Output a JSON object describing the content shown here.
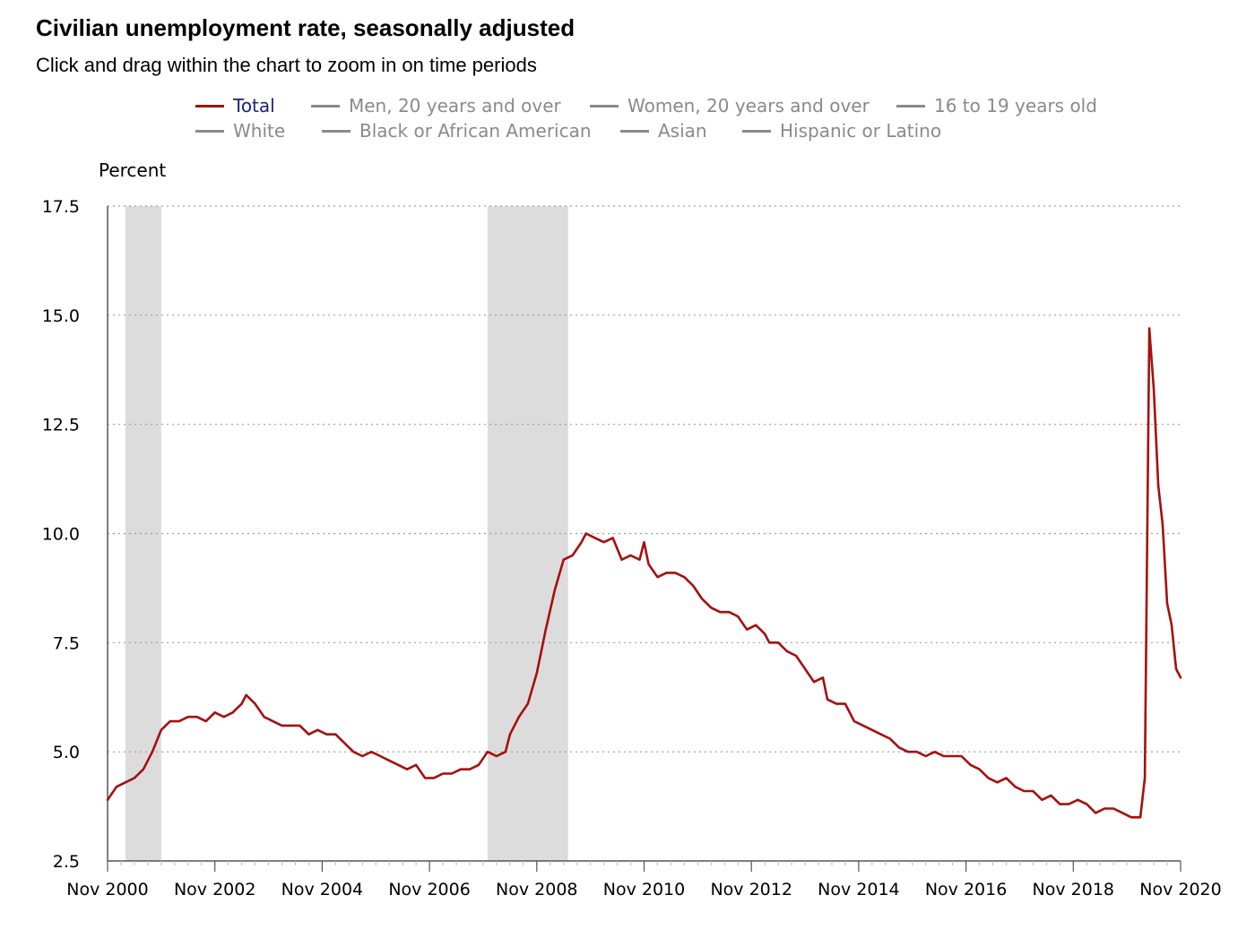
{
  "header": {
    "title": "Civilian unemployment rate, seasonally adjusted",
    "subtitle": "Click and drag within the chart to zoom in on time periods"
  },
  "legend": [
    {
      "label": "Total",
      "active": true
    },
    {
      "label": "Men, 20 years and over",
      "active": false
    },
    {
      "label": "Women, 20 years and over",
      "active": false
    },
    {
      "label": "16 to 19 years old",
      "active": false
    },
    {
      "label": "White",
      "active": false
    },
    {
      "label": "Black or African American",
      "active": false
    },
    {
      "label": "Asian",
      "active": false
    },
    {
      "label": "Hispanic or Latino",
      "active": false
    }
  ],
  "colors": {
    "series": "#a50f0f",
    "recession": "#dcdcdc",
    "grid": "#9e9e9e",
    "legend_inactive": "#8a8a8a",
    "legend_active_text": "#1a237e"
  },
  "chart_data": {
    "type": "line",
    "ylabel": "Percent",
    "xlabel": "",
    "ylim": [
      2.5,
      17.5
    ],
    "yticks": [
      "2.5",
      "5.0",
      "7.5",
      "10.0",
      "12.5",
      "15.0",
      "17.5"
    ],
    "xlim": [
      "Nov 2000",
      "Nov 2020"
    ],
    "xticks": [
      "Nov 2000",
      "Nov 2002",
      "Nov 2004",
      "Nov 2006",
      "Nov 2008",
      "Nov 2010",
      "Nov 2012",
      "Nov 2014",
      "Nov 2016",
      "Nov 2018",
      "Nov 2020"
    ],
    "grid": "horizontal dotted",
    "recessions": [
      {
        "start": "Mar 2001",
        "end": "Nov 2001"
      },
      {
        "start": "Dec 2007",
        "end": "Jun 2009"
      }
    ],
    "series": [
      {
        "name": "Total",
        "points": [
          [
            "Nov 2000",
            3.9
          ],
          [
            "Jan 2001",
            4.2
          ],
          [
            "Mar 2001",
            4.3
          ],
          [
            "May 2001",
            4.4
          ],
          [
            "Jul 2001",
            4.6
          ],
          [
            "Sep 2001",
            5.0
          ],
          [
            "Nov 2001",
            5.5
          ],
          [
            "Jan 2002",
            5.7
          ],
          [
            "Mar 2002",
            5.7
          ],
          [
            "May 2002",
            5.8
          ],
          [
            "Jul 2002",
            5.8
          ],
          [
            "Sep 2002",
            5.7
          ],
          [
            "Nov 2002",
            5.9
          ],
          [
            "Jan 2003",
            5.8
          ],
          [
            "Mar 2003",
            5.9
          ],
          [
            "May 2003",
            6.1
          ],
          [
            "Jun 2003",
            6.3
          ],
          [
            "Aug 2003",
            6.1
          ],
          [
            "Oct 2003",
            5.8
          ],
          [
            "Dec 2003",
            5.7
          ],
          [
            "Feb 2004",
            5.6
          ],
          [
            "Apr 2004",
            5.6
          ],
          [
            "Jun 2004",
            5.6
          ],
          [
            "Aug 2004",
            5.4
          ],
          [
            "Oct 2004",
            5.5
          ],
          [
            "Dec 2004",
            5.4
          ],
          [
            "Feb 2005",
            5.4
          ],
          [
            "Apr 2005",
            5.2
          ],
          [
            "Jun 2005",
            5.0
          ],
          [
            "Aug 2005",
            4.9
          ],
          [
            "Oct 2005",
            5.0
          ],
          [
            "Dec 2005",
            4.9
          ],
          [
            "Feb 2006",
            4.8
          ],
          [
            "Apr 2006",
            4.7
          ],
          [
            "Jun 2006",
            4.6
          ],
          [
            "Aug 2006",
            4.7
          ],
          [
            "Oct 2006",
            4.4
          ],
          [
            "Dec 2006",
            4.4
          ],
          [
            "Feb 2007",
            4.5
          ],
          [
            "Apr 2007",
            4.5
          ],
          [
            "Jun 2007",
            4.6
          ],
          [
            "Aug 2007",
            4.6
          ],
          [
            "Oct 2007",
            4.7
          ],
          [
            "Dec 2007",
            5.0
          ],
          [
            "Feb 2008",
            4.9
          ],
          [
            "Apr 2008",
            5.0
          ],
          [
            "May 2008",
            5.4
          ],
          [
            "Jul 2008",
            5.8
          ],
          [
            "Sep 2008",
            6.1
          ],
          [
            "Nov 2008",
            6.8
          ],
          [
            "Jan 2009",
            7.8
          ],
          [
            "Mar 2009",
            8.7
          ],
          [
            "May 2009",
            9.4
          ],
          [
            "Jul 2009",
            9.5
          ],
          [
            "Sep 2009",
            9.8
          ],
          [
            "Oct 2009",
            10.0
          ],
          [
            "Dec 2009",
            9.9
          ],
          [
            "Feb 2010",
            9.8
          ],
          [
            "Apr 2010",
            9.9
          ],
          [
            "Jun 2010",
            9.4
          ],
          [
            "Aug 2010",
            9.5
          ],
          [
            "Oct 2010",
            9.4
          ],
          [
            "Nov 2010",
            9.8
          ],
          [
            "Dec 2010",
            9.3
          ],
          [
            "Feb 2011",
            9.0
          ],
          [
            "Apr 2011",
            9.1
          ],
          [
            "Jun 2011",
            9.1
          ],
          [
            "Aug 2011",
            9.0
          ],
          [
            "Oct 2011",
            8.8
          ],
          [
            "Dec 2011",
            8.5
          ],
          [
            "Feb 2012",
            8.3
          ],
          [
            "Apr 2012",
            8.2
          ],
          [
            "Jun 2012",
            8.2
          ],
          [
            "Aug 2012",
            8.1
          ],
          [
            "Oct 2012",
            7.8
          ],
          [
            "Dec 2012",
            7.9
          ],
          [
            "Feb 2013",
            7.7
          ],
          [
            "Mar 2013",
            7.5
          ],
          [
            "May 2013",
            7.5
          ],
          [
            "Jul 2013",
            7.3
          ],
          [
            "Sep 2013",
            7.2
          ],
          [
            "Nov 2013",
            6.9
          ],
          [
            "Jan 2014",
            6.6
          ],
          [
            "Mar 2014",
            6.7
          ],
          [
            "Apr 2014",
            6.2
          ],
          [
            "Jun 2014",
            6.1
          ],
          [
            "Aug 2014",
            6.1
          ],
          [
            "Oct 2014",
            5.7
          ],
          [
            "Dec 2014",
            5.6
          ],
          [
            "Feb 2015",
            5.5
          ],
          [
            "Apr 2015",
            5.4
          ],
          [
            "Jun 2015",
            5.3
          ],
          [
            "Aug 2015",
            5.1
          ],
          [
            "Oct 2015",
            5.0
          ],
          [
            "Dec 2015",
            5.0
          ],
          [
            "Feb 2016",
            4.9
          ],
          [
            "Apr 2016",
            5.0
          ],
          [
            "Jun 2016",
            4.9
          ],
          [
            "Aug 2016",
            4.9
          ],
          [
            "Oct 2016",
            4.9
          ],
          [
            "Dec 2016",
            4.7
          ],
          [
            "Feb 2017",
            4.6
          ],
          [
            "Apr 2017",
            4.4
          ],
          [
            "Jun 2017",
            4.3
          ],
          [
            "Aug 2017",
            4.4
          ],
          [
            "Oct 2017",
            4.2
          ],
          [
            "Dec 2017",
            4.1
          ],
          [
            "Feb 2018",
            4.1
          ],
          [
            "Apr 2018",
            3.9
          ],
          [
            "Jun 2018",
            4.0
          ],
          [
            "Aug 2018",
            3.8
          ],
          [
            "Oct 2018",
            3.8
          ],
          [
            "Dec 2018",
            3.9
          ],
          [
            "Feb 2019",
            3.8
          ],
          [
            "Apr 2019",
            3.6
          ],
          [
            "Jun 2019",
            3.7
          ],
          [
            "Aug 2019",
            3.7
          ],
          [
            "Oct 2019",
            3.6
          ],
          [
            "Dec 2019",
            3.5
          ],
          [
            "Feb 2020",
            3.5
          ],
          [
            "Mar 2020",
            4.4
          ],
          [
            "Apr 2020",
            14.7
          ],
          [
            "May 2020",
            13.3
          ],
          [
            "Jun 2020",
            11.1
          ],
          [
            "Jul 2020",
            10.2
          ],
          [
            "Aug 2020",
            8.4
          ],
          [
            "Sep 2020",
            7.9
          ],
          [
            "Oct 2020",
            6.9
          ],
          [
            "Nov 2020",
            6.7
          ]
        ]
      }
    ]
  }
}
